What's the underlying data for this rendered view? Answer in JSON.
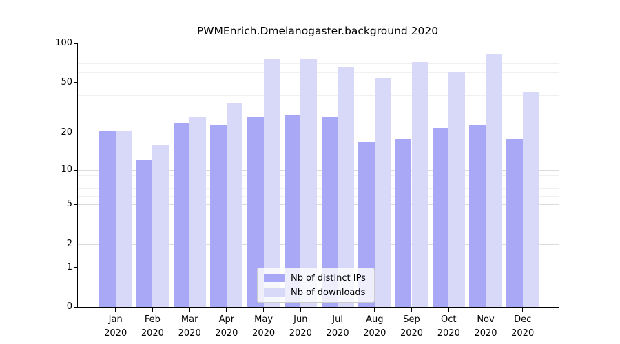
{
  "chart_data": {
    "type": "bar",
    "title": "PWMEnrich.Dmelanogaster.background 2020",
    "year_label": "2020",
    "months": [
      "Jan",
      "Feb",
      "Mar",
      "Apr",
      "May",
      "Jun",
      "Jul",
      "Aug",
      "Sep",
      "Oct",
      "Nov",
      "Dec"
    ],
    "series": [
      {
        "name": "Nb of distinct IPs",
        "key": "distinct-ips",
        "color": "#a8a8f6",
        "values": [
          21,
          12,
          24,
          23,
          27,
          28,
          27,
          17,
          18,
          22,
          23,
          18
        ]
      },
      {
        "name": "Nb of downloads",
        "key": "downloads",
        "color": "#d8d8f9",
        "values": [
          21,
          16,
          27,
          35,
          76,
          76,
          66,
          54,
          72,
          61,
          82,
          42
        ]
      }
    ],
    "y_scale": "log1p",
    "ylim": [
      0,
      100
    ],
    "y_ticks": [
      0,
      1,
      2,
      5,
      10,
      20,
      50,
      100
    ],
    "y_gridlines_minor": [
      3,
      4,
      6,
      7,
      8,
      9,
      30,
      40,
      60,
      70,
      80,
      90
    ],
    "xlabel": "",
    "ylabel": "",
    "grid": "horizontal",
    "legend_position": "lower center"
  }
}
